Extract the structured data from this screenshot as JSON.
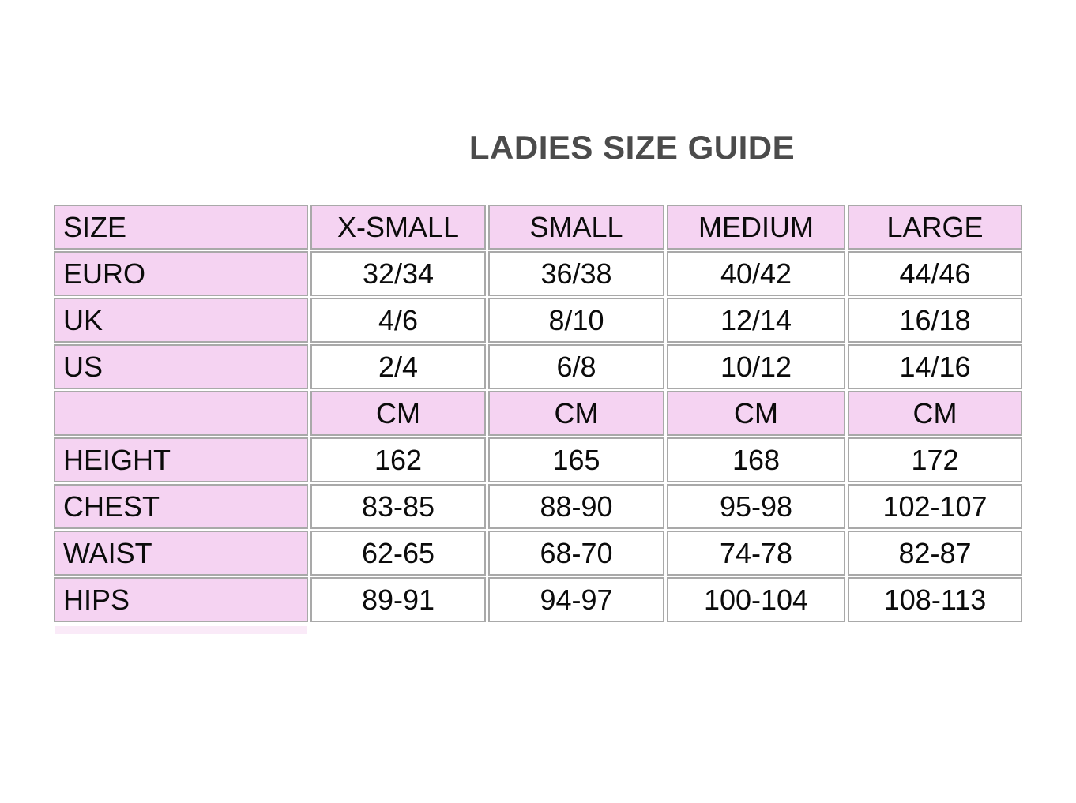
{
  "page": {
    "title": "LADIES SIZE GUIDE"
  },
  "colors": {
    "cell_pink": "#f5d3f2",
    "bottom_stub_pink": "#faeaf8",
    "border_gray": "#a9a9a9",
    "title_gray": "#4b4b4b",
    "text_black": "#0b0b0b",
    "background": "#ffffff"
  },
  "table": {
    "columns": [
      "SIZE",
      "X-SMALL",
      "SMALL",
      "MEDIUM",
      "LARGE"
    ],
    "size_rows": [
      {
        "label": "EURO",
        "values": [
          "32/34",
          "36/38",
          "40/42",
          "44/46"
        ]
      },
      {
        "label": "UK",
        "values": [
          "4/6",
          "8/10",
          "12/14",
          "16/18"
        ]
      },
      {
        "label": "US",
        "values": [
          "2/4",
          "6/8",
          "10/12",
          "14/16"
        ]
      }
    ],
    "unit_row": {
      "label": "",
      "values": [
        "CM",
        "CM",
        "CM",
        "CM"
      ]
    },
    "measurement_rows": [
      {
        "label": "HEIGHT",
        "values": [
          "162",
          "165",
          "168",
          "172"
        ]
      },
      {
        "label": "CHEST",
        "values": [
          "83-85",
          "88-90",
          "95-98",
          "102-107"
        ]
      },
      {
        "label": "WAIST",
        "values": [
          "62-65",
          "68-70",
          "74-78",
          "82-87"
        ]
      },
      {
        "label": "HIPS",
        "values": [
          "89-91",
          "94-97",
          "100-104",
          "108-113"
        ]
      }
    ]
  }
}
